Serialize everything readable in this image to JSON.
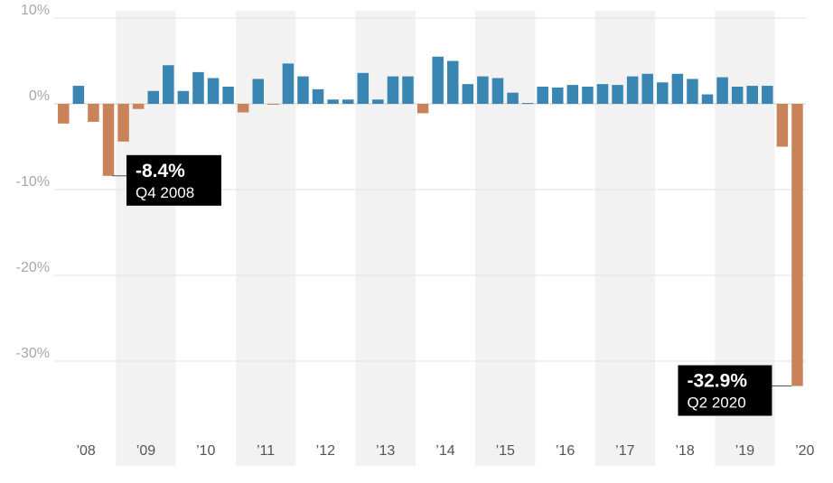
{
  "chart_data": {
    "type": "bar",
    "title": "",
    "xlabel": "",
    "ylabel": "",
    "ylim": [
      -38,
      10
    ],
    "yticks": [
      10,
      0,
      -10,
      -20,
      -30
    ],
    "ytick_labels": [
      "10%",
      "0%",
      "-10%",
      "-20%",
      "-30%"
    ],
    "grid": true,
    "alternating_year_shading": true,
    "colors": {
      "positive": "#3a86b3",
      "negative": "#c9835a",
      "shade": "#f2f2f2",
      "grid": "#e3e3e3",
      "annotation_box": "#000000"
    },
    "years": [
      "’08",
      "’09",
      "’10",
      "’11",
      "’12",
      "’13",
      "’14",
      "’15",
      "’16",
      "’17",
      "’18",
      "’19",
      "’20"
    ],
    "categories": [
      "Q1 2008",
      "Q2 2008",
      "Q3 2008",
      "Q4 2008",
      "Q1 2009",
      "Q2 2009",
      "Q3 2009",
      "Q4 2009",
      "Q1 2010",
      "Q2 2010",
      "Q3 2010",
      "Q4 2010",
      "Q1 2011",
      "Q2 2011",
      "Q3 2011",
      "Q4 2011",
      "Q1 2012",
      "Q2 2012",
      "Q3 2012",
      "Q4 2012",
      "Q1 2013",
      "Q2 2013",
      "Q3 2013",
      "Q4 2013",
      "Q1 2014",
      "Q2 2014",
      "Q3 2014",
      "Q4 2014",
      "Q1 2015",
      "Q2 2015",
      "Q3 2015",
      "Q4 2015",
      "Q1 2016",
      "Q2 2016",
      "Q3 2016",
      "Q4 2016",
      "Q1 2017",
      "Q2 2017",
      "Q3 2017",
      "Q4 2017",
      "Q1 2018",
      "Q2 2018",
      "Q3 2018",
      "Q4 2018",
      "Q1 2019",
      "Q2 2019",
      "Q3 2019",
      "Q4 2019",
      "Q1 2020",
      "Q2 2020"
    ],
    "values": [
      -2.3,
      2.1,
      -2.1,
      -8.4,
      -4.4,
      -0.6,
      1.5,
      4.5,
      1.5,
      3.7,
      3.0,
      2.0,
      -1.0,
      2.9,
      -0.1,
      4.7,
      3.2,
      1.7,
      0.5,
      0.5,
      3.6,
      0.5,
      3.2,
      3.2,
      -1.1,
      5.5,
      5.0,
      2.3,
      3.2,
      3.0,
      1.3,
      0.1,
      2.0,
      1.9,
      2.2,
      2.0,
      2.3,
      2.2,
      3.2,
      3.5,
      2.5,
      3.5,
      2.9,
      1.1,
      3.1,
      2.0,
      2.1,
      2.1,
      -5.0,
      -32.9
    ],
    "annotations": [
      {
        "category": "Q4 2008",
        "value_label": "-8.4%",
        "period_label": "Q4 2008",
        "side": "right"
      },
      {
        "category": "Q2 2020",
        "value_label": "-32.9%",
        "period_label": "Q2 2020",
        "side": "left"
      }
    ]
  }
}
